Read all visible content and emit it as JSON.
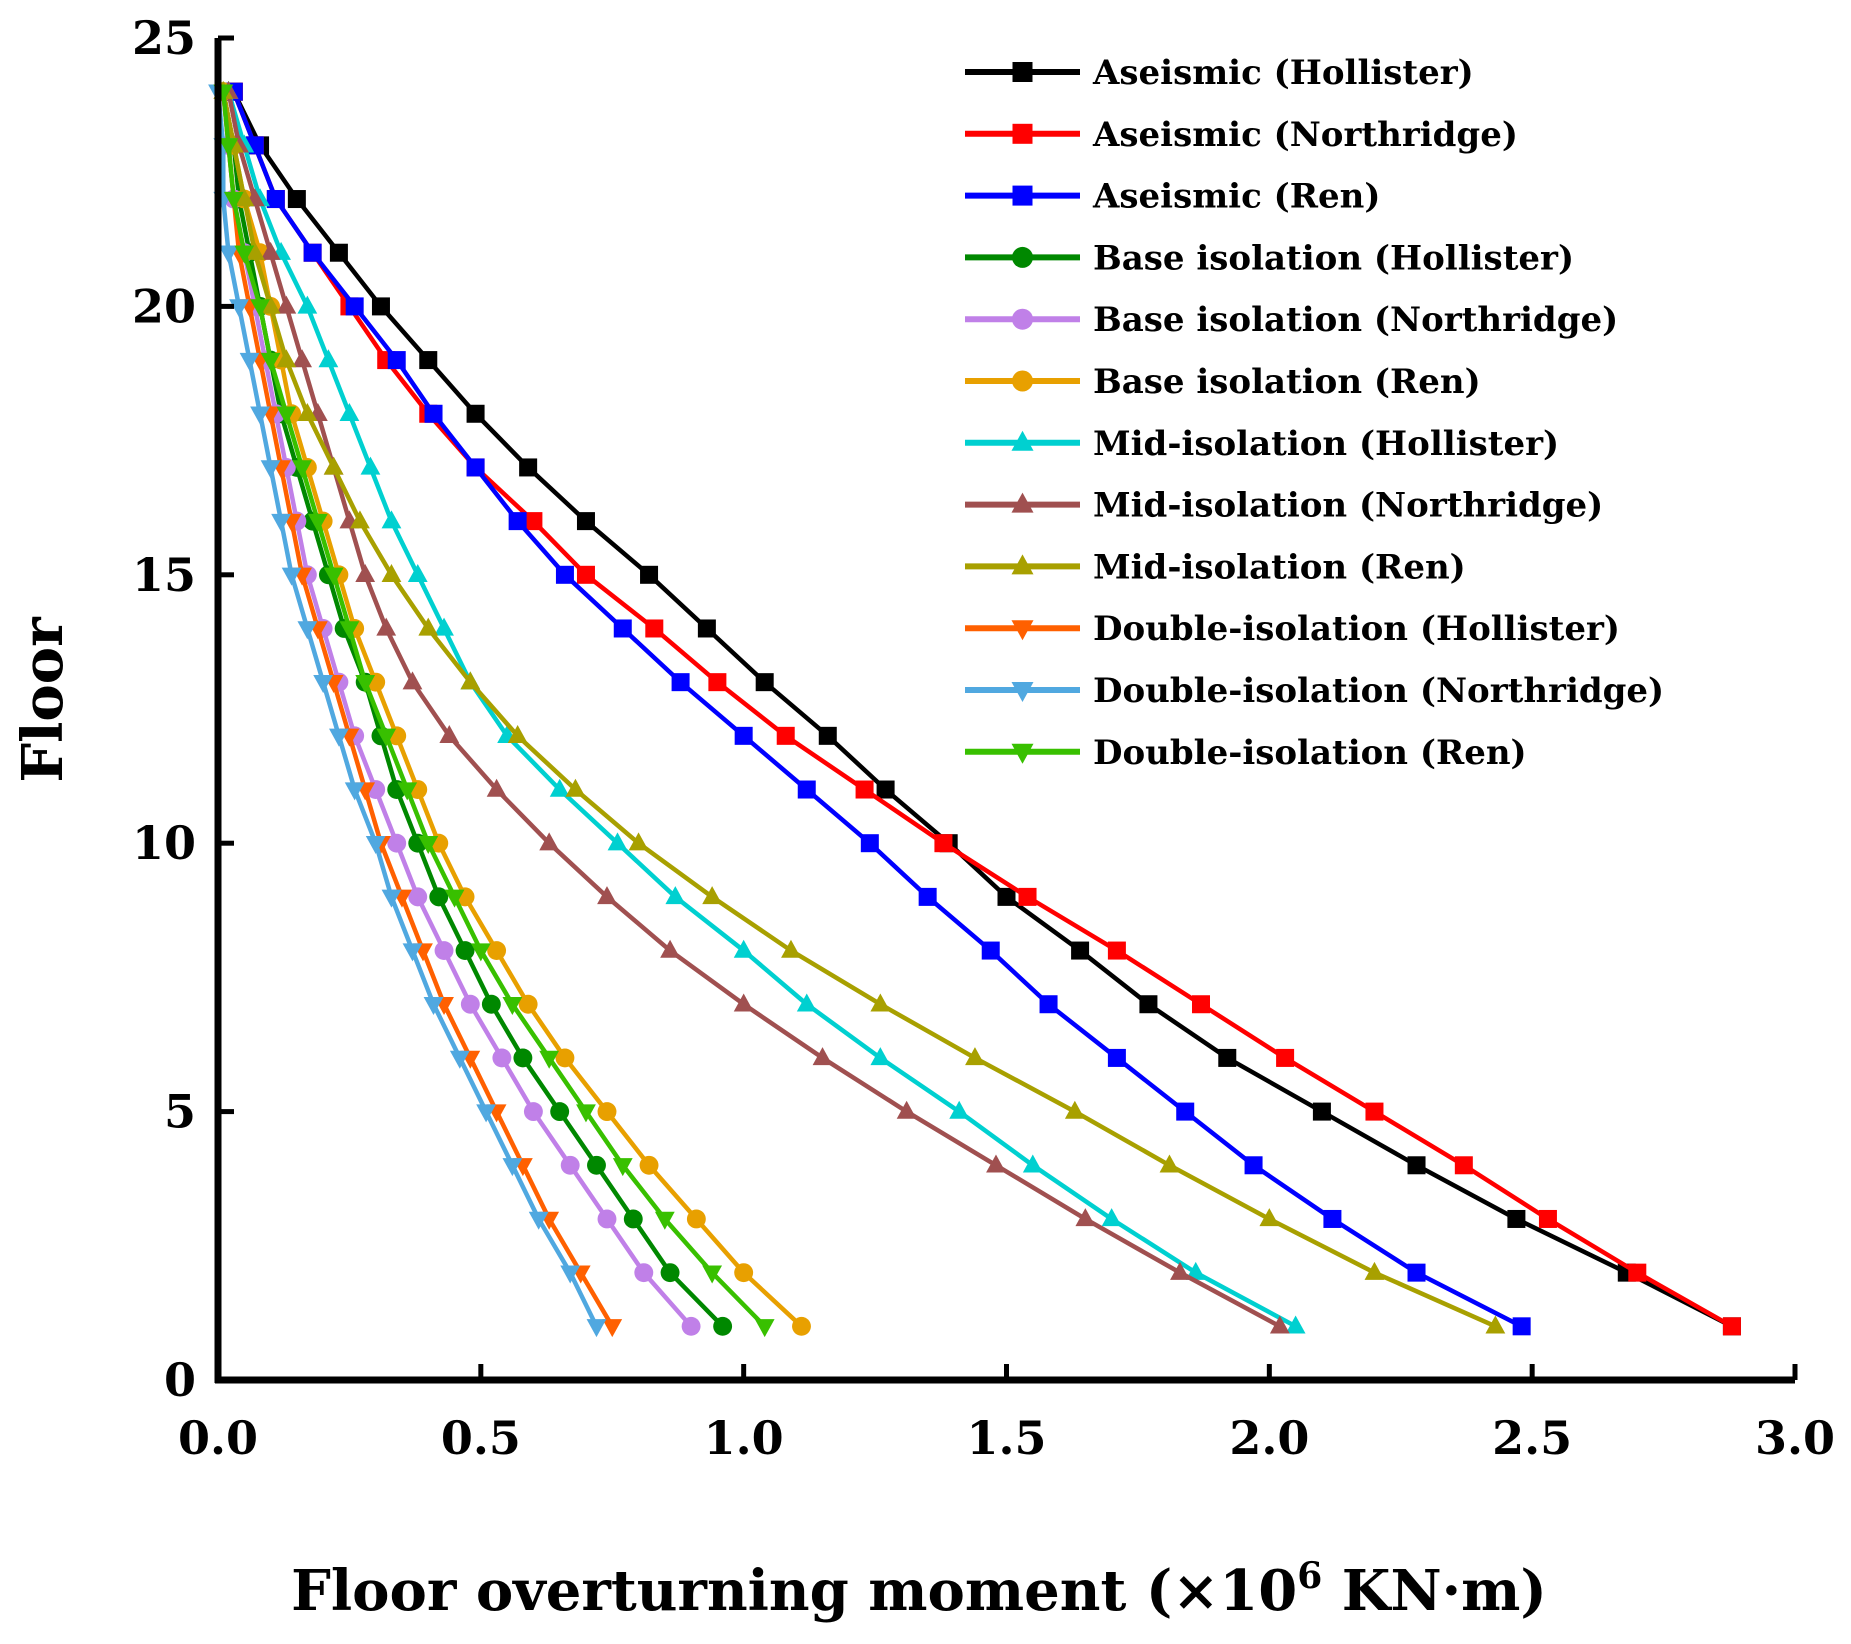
{
  "chart_data": {
    "type": "line",
    "title": "",
    "xlabel": "Floor overturning moment (×10",
    "xlabel_sup": "6",
    "xlabel_tail": " KN·m)",
    "ylabel": "Floor",
    "xlim": [
      0,
      3.0
    ],
    "ylim": [
      0,
      25
    ],
    "x_ticks": [
      "0.0",
      "0.5",
      "1.0",
      "1.5",
      "2.0",
      "2.5",
      "3.0"
    ],
    "y_ticks": [
      "0",
      "5",
      "10",
      "15",
      "20",
      "25"
    ],
    "grid": false,
    "legend_position": "top-right",
    "floors": [
      1,
      2,
      3,
      4,
      5,
      6,
      7,
      8,
      9,
      10,
      11,
      12,
      13,
      14,
      15,
      16,
      17,
      18,
      19,
      20,
      21,
      22,
      23,
      24
    ],
    "series": [
      {
        "name": "Aseismic (Hollister)",
        "color": "#000000",
        "marker": "square",
        "values": [
          2.88,
          2.68,
          2.47,
          2.28,
          2.1,
          1.92,
          1.77,
          1.64,
          1.5,
          1.39,
          1.27,
          1.16,
          1.04,
          0.93,
          0.82,
          0.7,
          0.59,
          0.49,
          0.4,
          0.31,
          0.23,
          0.15,
          0.08,
          0.03
        ]
      },
      {
        "name": "Aseismic (Northridge)",
        "color": "#ff0000",
        "marker": "square",
        "values": [
          2.88,
          2.7,
          2.53,
          2.37,
          2.2,
          2.03,
          1.87,
          1.71,
          1.54,
          1.38,
          1.23,
          1.08,
          0.95,
          0.83,
          0.7,
          0.6,
          0.49,
          0.4,
          0.32,
          0.25,
          0.18,
          0.11,
          0.07,
          0.03
        ]
      },
      {
        "name": "Aseismic (Ren)",
        "color": "#0000ff",
        "marker": "square",
        "values": [
          2.48,
          2.28,
          2.12,
          1.97,
          1.84,
          1.71,
          1.58,
          1.47,
          1.35,
          1.24,
          1.12,
          1.0,
          0.88,
          0.77,
          0.66,
          0.57,
          0.49,
          0.41,
          0.34,
          0.26,
          0.18,
          0.11,
          0.07,
          0.03
        ]
      },
      {
        "name": "Base isolation (Hollister)",
        "color": "#008800",
        "marker": "circle",
        "values": [
          0.96,
          0.86,
          0.79,
          0.72,
          0.65,
          0.58,
          0.52,
          0.47,
          0.42,
          0.38,
          0.34,
          0.31,
          0.28,
          0.24,
          0.21,
          0.18,
          0.15,
          0.12,
          0.1,
          0.08,
          0.06,
          0.04,
          0.03,
          0.01
        ]
      },
      {
        "name": "Base isolation (Northridge)",
        "color": "#c080e8",
        "marker": "circle",
        "values": [
          0.9,
          0.81,
          0.74,
          0.67,
          0.6,
          0.54,
          0.48,
          0.43,
          0.38,
          0.34,
          0.3,
          0.26,
          0.23,
          0.2,
          0.17,
          0.15,
          0.13,
          0.11,
          0.09,
          0.07,
          0.05,
          0.03,
          0.02,
          0.01
        ]
      },
      {
        "name": "Base isolation (Ren)",
        "color": "#e8a000",
        "marker": "circle",
        "values": [
          1.11,
          1.0,
          0.91,
          0.82,
          0.74,
          0.66,
          0.59,
          0.53,
          0.47,
          0.42,
          0.38,
          0.34,
          0.3,
          0.26,
          0.23,
          0.2,
          0.17,
          0.14,
          0.12,
          0.1,
          0.08,
          0.05,
          0.03,
          0.01
        ]
      },
      {
        "name": "Mid-isolation (Hollister)",
        "color": "#00d0d0",
        "marker": "triangle",
        "values": [
          2.05,
          1.86,
          1.7,
          1.55,
          1.41,
          1.26,
          1.12,
          1.0,
          0.87,
          0.76,
          0.65,
          0.55,
          0.48,
          0.43,
          0.38,
          0.33,
          0.29,
          0.25,
          0.21,
          0.17,
          0.12,
          0.08,
          0.05,
          0.02
        ]
      },
      {
        "name": "Mid-isolation (Northridge)",
        "color": "#a05050",
        "marker": "triangle",
        "values": [
          2.02,
          1.83,
          1.65,
          1.48,
          1.31,
          1.15,
          1.0,
          0.86,
          0.74,
          0.63,
          0.53,
          0.44,
          0.37,
          0.32,
          0.28,
          0.25,
          0.22,
          0.19,
          0.16,
          0.13,
          0.1,
          0.07,
          0.04,
          0.02
        ]
      },
      {
        "name": "Mid-isolation (Ren)",
        "color": "#a8a000",
        "marker": "triangle",
        "values": [
          2.43,
          2.2,
          2.0,
          1.81,
          1.63,
          1.44,
          1.26,
          1.09,
          0.94,
          0.8,
          0.68,
          0.57,
          0.48,
          0.4,
          0.33,
          0.27,
          0.22,
          0.17,
          0.13,
          0.1,
          0.07,
          0.05,
          0.03,
          0.01
        ]
      },
      {
        "name": "Double-isolation (Hollister)",
        "color": "#ff6000",
        "marker": "triangle-down",
        "values": [
          0.75,
          0.69,
          0.63,
          0.58,
          0.53,
          0.48,
          0.43,
          0.39,
          0.35,
          0.31,
          0.28,
          0.25,
          0.22,
          0.19,
          0.16,
          0.14,
          0.12,
          0.1,
          0.08,
          0.06,
          0.04,
          0.03,
          0.02,
          0.01
        ]
      },
      {
        "name": "Double-isolation (Northridge)",
        "color": "#50a8e0",
        "marker": "triangle-down",
        "values": [
          0.72,
          0.67,
          0.61,
          0.56,
          0.51,
          0.46,
          0.41,
          0.37,
          0.33,
          0.3,
          0.26,
          0.23,
          0.2,
          0.17,
          0.14,
          0.12,
          0.1,
          0.08,
          0.06,
          0.04,
          0.02,
          0.01,
          0.01,
          0.0
        ]
      },
      {
        "name": "Double-isolation (Ren)",
        "color": "#38c000",
        "marker": "triangle-down",
        "values": [
          1.04,
          0.94,
          0.85,
          0.77,
          0.7,
          0.63,
          0.56,
          0.5,
          0.45,
          0.4,
          0.36,
          0.32,
          0.28,
          0.25,
          0.22,
          0.19,
          0.16,
          0.13,
          0.1,
          0.08,
          0.05,
          0.03,
          0.02,
          0.01
        ]
      }
    ]
  }
}
